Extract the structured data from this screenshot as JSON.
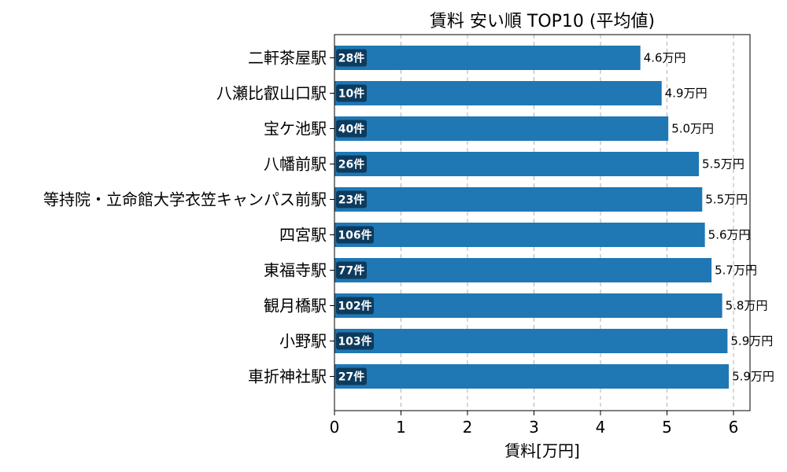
{
  "chart_data": {
    "type": "bar",
    "orientation": "horizontal",
    "title": "賃料 安い順 TOP10 (平均値)",
    "xlabel": "賃料[万円]",
    "ylabel": "",
    "xlim": [
      0,
      6.25
    ],
    "xticks": [
      "0",
      "1",
      "2",
      "3",
      "4",
      "5",
      "6"
    ],
    "grid": "x",
    "bar_color": "#1f77b4",
    "badge_color": "#0d3b5e",
    "categories": [
      "二軒茶屋駅",
      "八瀬比叡山口駅",
      "宝ケ池駅",
      "八幡前駅",
      "等持院・立命館大学衣笠キャンパス前駅",
      "四宮駅",
      "東福寺駅",
      "観月橋駅",
      "小野駅",
      "車折神社駅"
    ],
    "values": [
      4.6,
      4.92,
      5.02,
      5.48,
      5.53,
      5.57,
      5.67,
      5.83,
      5.91,
      5.93
    ],
    "value_labels": [
      "4.6万円",
      "4.9万円",
      "5.0万円",
      "5.5万円",
      "5.5万円",
      "5.6万円",
      "5.7万円",
      "5.8万円",
      "5.9万円",
      "5.9万円"
    ],
    "counts": [
      "28件",
      "10件",
      "40件",
      "26件",
      "23件",
      "106件",
      "77件",
      "102件",
      "103件",
      "27件"
    ]
  }
}
